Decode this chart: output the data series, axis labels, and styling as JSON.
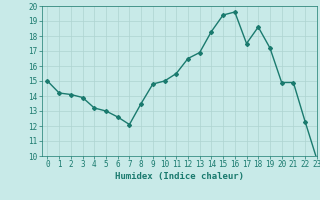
{
  "x": [
    0,
    1,
    2,
    3,
    4,
    5,
    6,
    7,
    8,
    9,
    10,
    11,
    12,
    13,
    14,
    15,
    16,
    17,
    18,
    19,
    20,
    21,
    22,
    23
  ],
  "y": [
    15.0,
    14.2,
    14.1,
    13.9,
    13.2,
    13.0,
    12.6,
    12.1,
    13.5,
    14.8,
    15.0,
    15.5,
    16.5,
    16.9,
    18.3,
    19.4,
    19.6,
    17.5,
    18.6,
    17.2,
    14.9,
    14.9,
    12.3,
    9.8
  ],
  "line_color": "#1a7a6e",
  "marker": "D",
  "marker_size": 2,
  "bg_color": "#c8eae8",
  "grid_color": "#aed4d0",
  "tick_color": "#1a7a6e",
  "xlabel": "Humidex (Indice chaleur)",
  "xlabel_fontsize": 6.5,
  "ylim": [
    10,
    20
  ],
  "xlim": [
    -0.5,
    23
  ],
  "yticks": [
    10,
    11,
    12,
    13,
    14,
    15,
    16,
    17,
    18,
    19,
    20
  ],
  "xticks": [
    0,
    1,
    2,
    3,
    4,
    5,
    6,
    7,
    8,
    9,
    10,
    11,
    12,
    13,
    14,
    15,
    16,
    17,
    18,
    19,
    20,
    21,
    22,
    23
  ],
  "tick_fontsize": 5.5,
  "linewidth": 1.0
}
